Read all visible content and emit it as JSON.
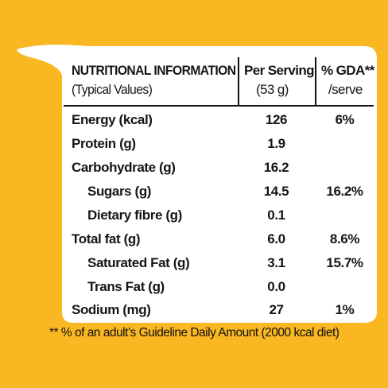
{
  "header": {
    "title": "NUTRITIONAL INFORMATION",
    "subtitle": "(Typical Values)",
    "per_serving_line1": "Per Serving",
    "per_serving_line2": "(53 g)",
    "gda_line1": "% GDA**",
    "gda_line2": "/serve"
  },
  "rows": [
    {
      "name": "Energy (kcal)",
      "per_serving": "126",
      "gda": "6%",
      "indent": false
    },
    {
      "name": "Protein (g)",
      "per_serving": "1.9",
      "gda": "",
      "indent": false
    },
    {
      "name": "Carbohydrate (g)",
      "per_serving": "16.2",
      "gda": "",
      "indent": false
    },
    {
      "name": "Sugars (g)",
      "per_serving": "14.5",
      "gda": "16.2%",
      "indent": true
    },
    {
      "name": "Dietary fibre (g)",
      "per_serving": "0.1",
      "gda": "",
      "indent": true
    },
    {
      "name": "Total fat (g)",
      "per_serving": "6.0",
      "gda": "8.6%",
      "indent": false
    },
    {
      "name": "Saturated Fat (g)",
      "per_serving": "3.1",
      "gda": "15.7%",
      "indent": true
    },
    {
      "name": "Trans Fat (g)",
      "per_serving": "0.0",
      "gda": "",
      "indent": true
    },
    {
      "name": "Sodium (mg)",
      "per_serving": "27",
      "gda": "1%",
      "indent": false
    }
  ],
  "footnote": "** % of an adult’s Guideline Daily Amount (2000 kcal diet)",
  "colors": {
    "background": "#f9b721",
    "panel": "#ffffff",
    "text": "#151515"
  }
}
